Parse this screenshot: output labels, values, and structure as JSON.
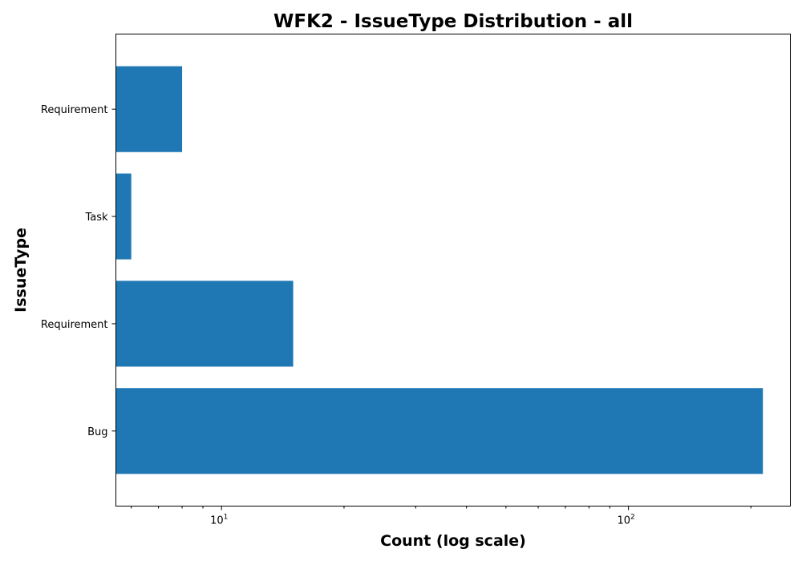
{
  "chart_data": {
    "type": "bar",
    "orientation": "horizontal",
    "title": "WFK2 - IssueType Distribution - all",
    "xlabel": "Count (log scale)",
    "ylabel": "IssueType",
    "x_scale": "log",
    "xlim": [
      5.5,
      250
    ],
    "x_ticks": [
      {
        "value": 10,
        "base": "10",
        "exp": "1"
      },
      {
        "value": 100,
        "base": "10",
        "exp": "2"
      }
    ],
    "categories": [
      "Bug",
      "Requirement",
      "Task",
      "Requirement"
    ],
    "values": [
      214,
      15,
      6,
      8
    ],
    "bar_color": "#1f77b4",
    "grid": false
  }
}
